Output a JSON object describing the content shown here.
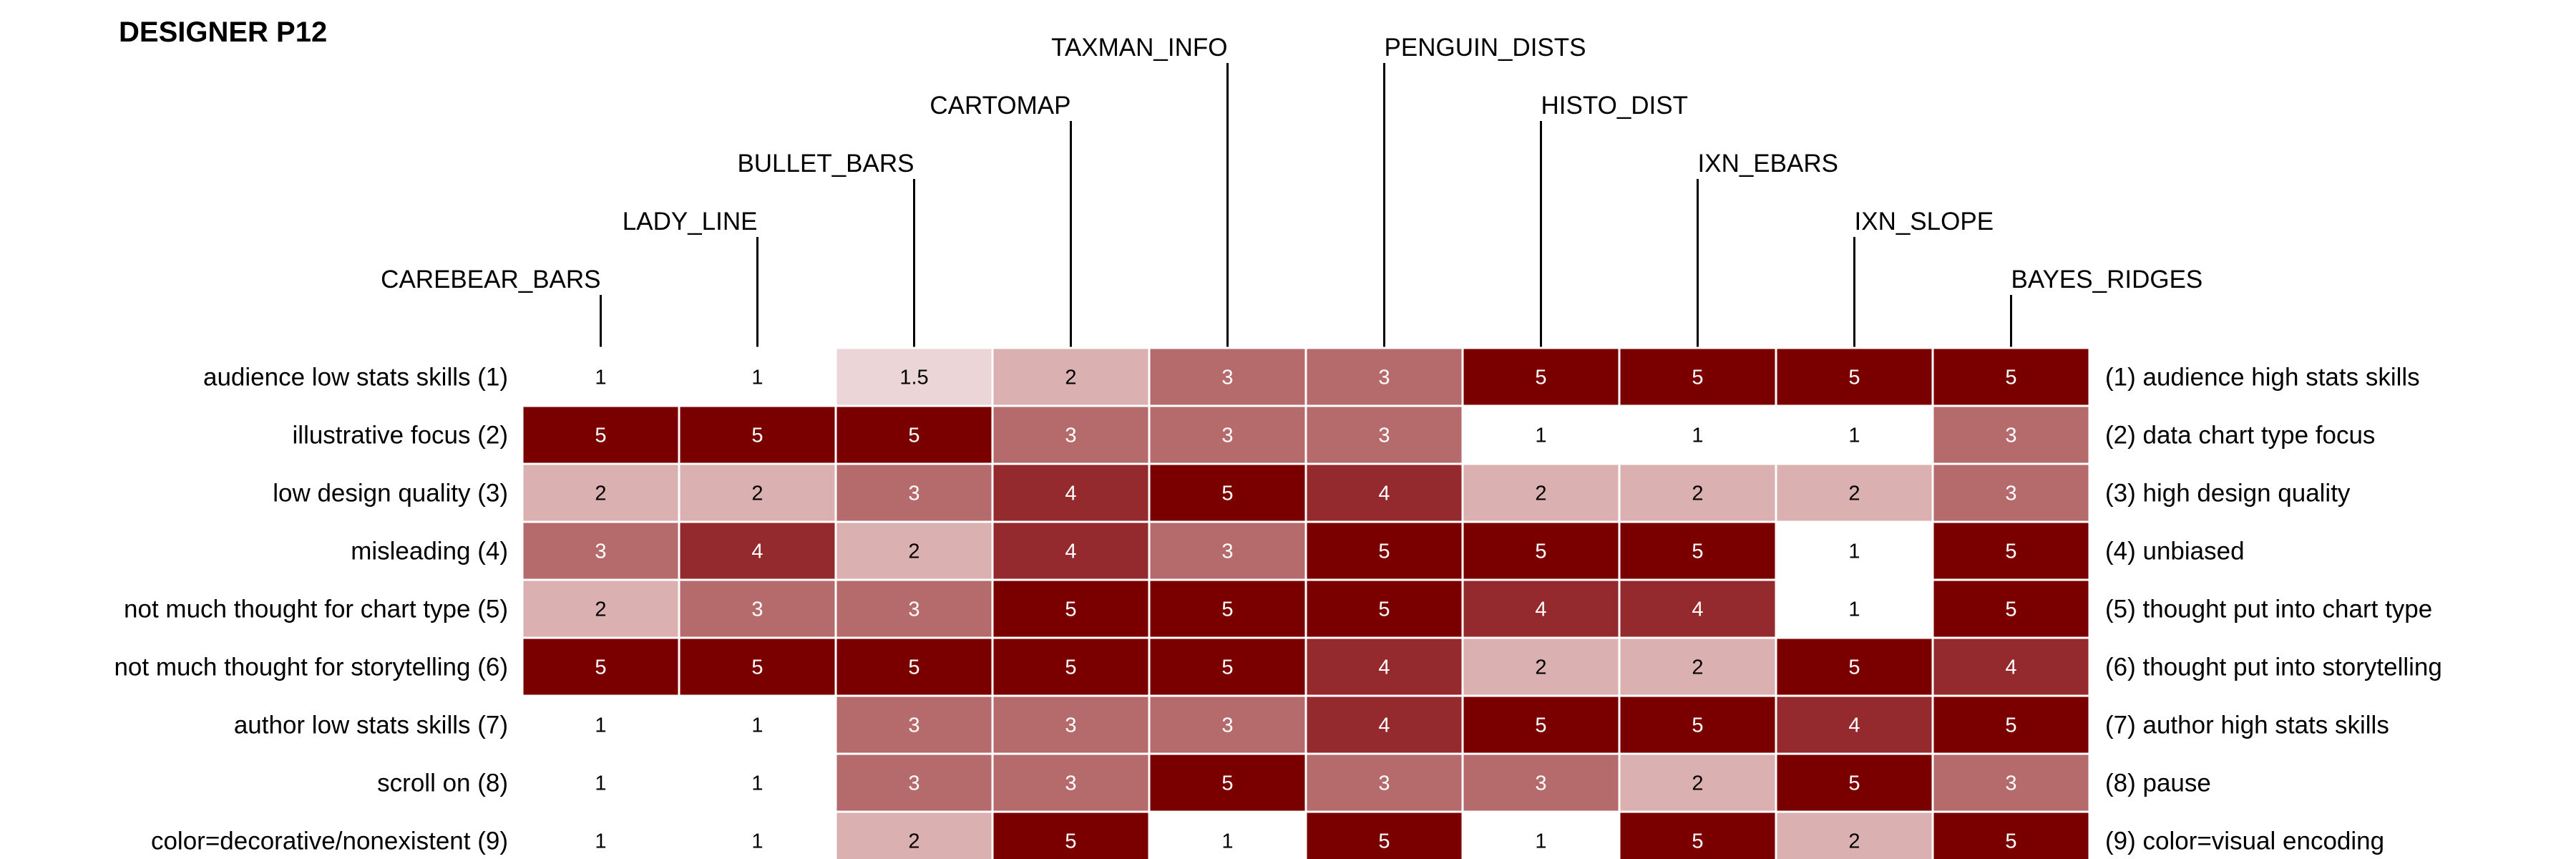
{
  "chart_data": {
    "type": "heatmap",
    "title": "DESIGNER P12",
    "columns": [
      "CAREBEAR_BARS",
      "LADY_LINE",
      "BULLET_BARS",
      "CARTOMAP",
      "TAXMAN_INFO",
      "PENGUIN_DISTS",
      "HISTO_DIST",
      "IXN_EBARS",
      "IXN_SLOPE",
      "BAYES_RIDGES"
    ],
    "rows_left": [
      "audience low stats skills (1)",
      "illustrative focus (2)",
      "low design quality (3)",
      "misleading (4)",
      "not much thought for chart type (5)",
      "not much thought for storytelling (6)",
      "author low stats skills (7)",
      "scroll on (8)",
      "color=decorative/nonexistent (9)"
    ],
    "rows_right": [
      "(1) audience high stats skills",
      "(2)  data chart type focus",
      "(3) high design quality",
      "(4) unbiased",
      "(5) thought put into chart type",
      "(6) thought put into storytelling",
      "(7) author high stats skills",
      "(8) pause",
      "(9) color=visual encoding"
    ],
    "values": [
      [
        1,
        1,
        1.5,
        2,
        3,
        3,
        5,
        5,
        5,
        5
      ],
      [
        5,
        5,
        5,
        3,
        3,
        3,
        1,
        1,
        1,
        3
      ],
      [
        2,
        2,
        3,
        4,
        5,
        4,
        2,
        2,
        2,
        3
      ],
      [
        3,
        4,
        2,
        4,
        3,
        5,
        5,
        5,
        1,
        5
      ],
      [
        2,
        3,
        3,
        5,
        5,
        5,
        4,
        4,
        1,
        5
      ],
      [
        5,
        5,
        5,
        5,
        5,
        4,
        2,
        2,
        5,
        4
      ],
      [
        1,
        1,
        3,
        3,
        3,
        4,
        5,
        5,
        4,
        5
      ],
      [
        1,
        1,
        3,
        3,
        5,
        3,
        3,
        2,
        5,
        3
      ],
      [
        1,
        1,
        2,
        5,
        1,
        5,
        1,
        5,
        2,
        5
      ]
    ],
    "value_range": [
      1,
      5
    ],
    "color_scale": {
      "1": "#ffffff",
      "1.5": "#ebd5d6",
      "2": "#dbb0b1",
      "3": "#b56a6c",
      "4": "#952a2e",
      "5": "#7a0000"
    },
    "legend": "none",
    "grid": false
  }
}
